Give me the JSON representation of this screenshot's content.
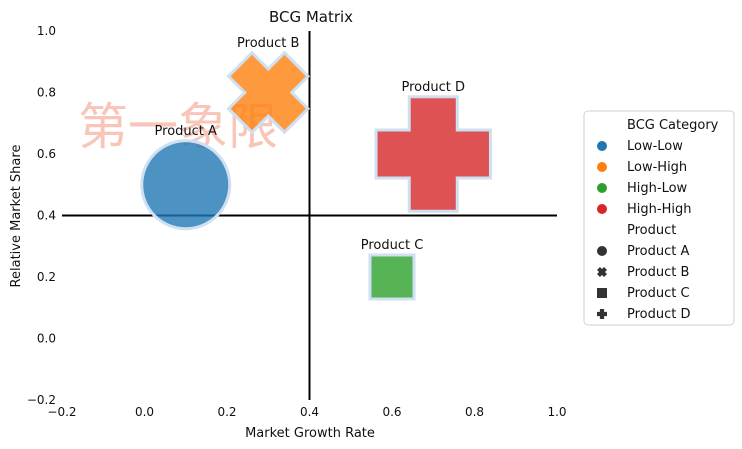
{
  "chart_data": {
    "type": "scatter",
    "title": "BCG Matrix",
    "xlabel": "Market Growth Rate",
    "ylabel": "Relative Market Share",
    "xlim": [
      -0.2,
      1.0
    ],
    "ylim": [
      -0.2,
      1.0
    ],
    "x_ticks": [
      "−0.2",
      "0.0",
      "0.2",
      "0.4",
      "0.6",
      "0.8",
      "1.0"
    ],
    "y_ticks": [
      "−0.2",
      "0.0",
      "0.2",
      "0.4",
      "0.6",
      "0.8",
      "1.0"
    ],
    "reference_lines": {
      "x": 0.4,
      "y": 0.4
    },
    "watermark": "第一象限",
    "grid": false,
    "points": [
      {
        "label": "Product A",
        "category": "Low-Low",
        "x": 0.1,
        "y": 0.5,
        "marker": "circle",
        "size": 1,
        "color": "#1f77b4"
      },
      {
        "label": "Product B",
        "category": "Low-High",
        "x": 0.3,
        "y": 0.8,
        "marker": "x",
        "size": 0.9,
        "color": "#ff7f0e"
      },
      {
        "label": "Product C",
        "category": "High-Low",
        "x": 0.6,
        "y": 0.2,
        "marker": "square",
        "size": 0.5,
        "color": "#2ca02c"
      },
      {
        "label": "Product D",
        "category": "High-High",
        "x": 0.7,
        "y": 0.6,
        "marker": "plus",
        "size": 1.3,
        "color": "#d62728"
      }
    ],
    "legend": {
      "placement": "right",
      "hue_title": "BCG Category",
      "hue_items": [
        {
          "name": "Low-Low",
          "color": "#1f77b4"
        },
        {
          "name": "Low-High",
          "color": "#ff7f0e"
        },
        {
          "name": "High-Low",
          "color": "#2ca02c"
        },
        {
          "name": "High-High",
          "color": "#d62728"
        }
      ],
      "style_title": "Product",
      "style_items": [
        {
          "name": "Product A",
          "marker": "circle"
        },
        {
          "name": "Product B",
          "marker": "x"
        },
        {
          "name": "Product C",
          "marker": "square"
        },
        {
          "name": "Product D",
          "marker": "plus"
        }
      ]
    }
  }
}
